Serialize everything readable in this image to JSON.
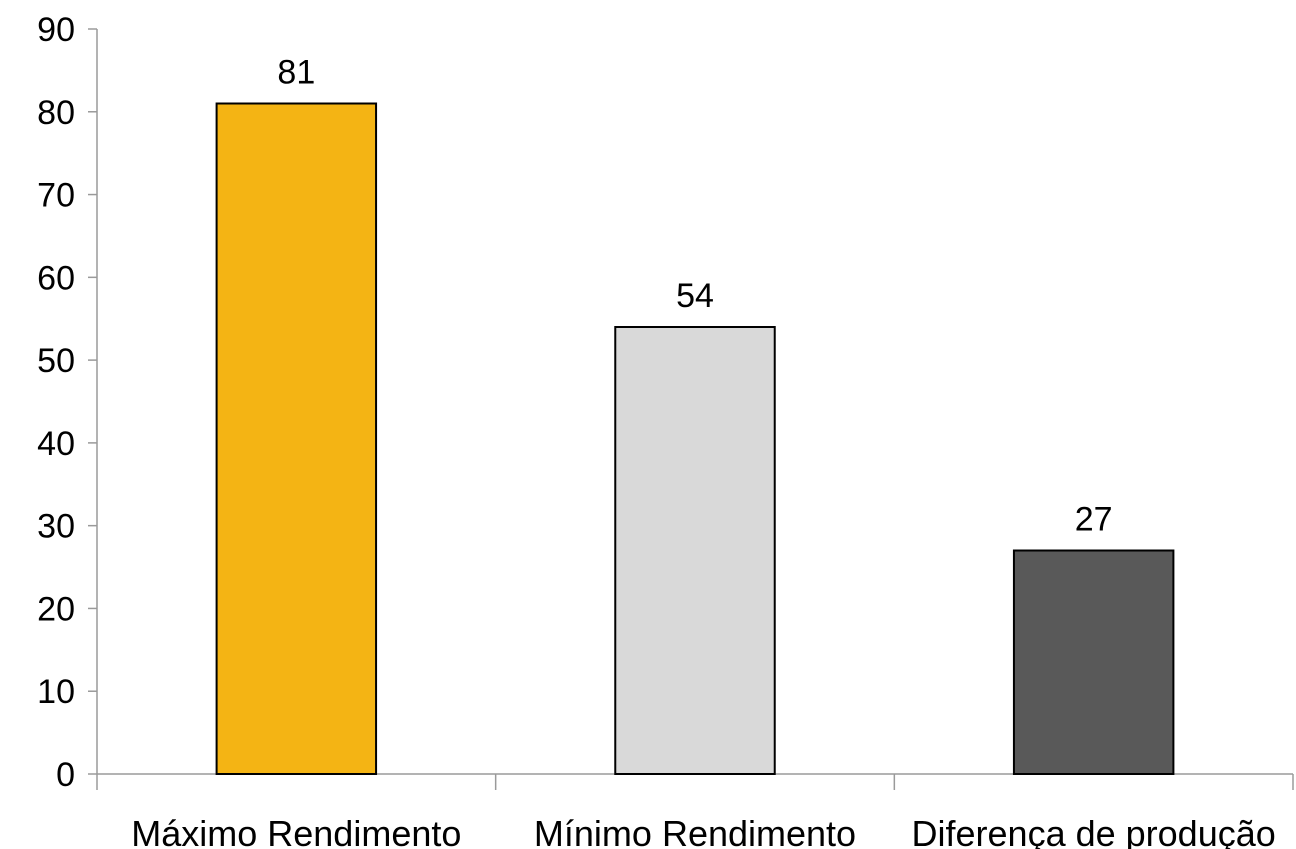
{
  "chart_data": {
    "type": "bar",
    "categories": [
      "Máximo Rendimento",
      "Mínimo Rendimento",
      "Diferença de produção"
    ],
    "values": [
      81,
      54,
      27
    ],
    "data_labels": [
      "81",
      "54",
      "27"
    ],
    "ylim": [
      0,
      90
    ],
    "yticks": [
      0,
      10,
      20,
      30,
      40,
      50,
      60,
      70,
      80,
      90
    ],
    "grid": false,
    "legend": "none",
    "colors": [
      "#F4B414",
      "#D9D9D9",
      "#595959"
    ],
    "bar_outline": "#000000"
  }
}
